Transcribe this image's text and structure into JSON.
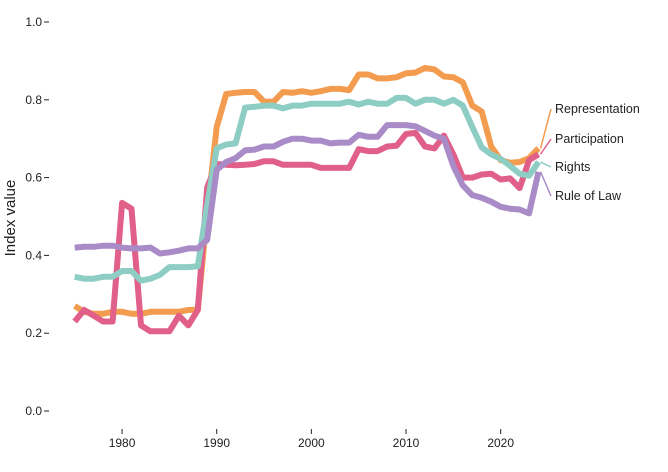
{
  "chart_data": {
    "type": "line",
    "title": "",
    "xlabel": "",
    "ylabel": "Index value",
    "xlim": [
      1974.5,
      2025
    ],
    "ylim": [
      0,
      1
    ],
    "x_ticks": [
      1980,
      1990,
      2000,
      2010,
      2020
    ],
    "y_ticks": [
      0.0,
      0.2,
      0.4,
      0.6,
      0.8,
      1.0
    ],
    "grid": false,
    "legend": "direct labels at line ends (right)",
    "years": [
      1975,
      1976,
      1977,
      1978,
      1979,
      1980,
      1981,
      1982,
      1983,
      1984,
      1985,
      1986,
      1987,
      1988,
      1989,
      1990,
      1991,
      1992,
      1993,
      1994,
      1995,
      1996,
      1997,
      1998,
      1999,
      2000,
      2001,
      2002,
      2003,
      2004,
      2005,
      2006,
      2007,
      2008,
      2009,
      2010,
      2011,
      2012,
      2013,
      2014,
      2015,
      2016,
      2017,
      2018,
      2019,
      2020,
      2021,
      2022,
      2023,
      2024
    ],
    "series": [
      {
        "name": "Representation",
        "color": "#f39c4f",
        "values": [
          0.27,
          0.255,
          0.25,
          0.25,
          0.255,
          0.255,
          0.25,
          0.25,
          0.255,
          0.255,
          0.255,
          0.255,
          0.26,
          0.26,
          0.51,
          0.73,
          0.815,
          0.818,
          0.82,
          0.82,
          0.795,
          0.795,
          0.82,
          0.818,
          0.822,
          0.818,
          0.822,
          0.828,
          0.828,
          0.825,
          0.865,
          0.865,
          0.855,
          0.855,
          0.858,
          0.868,
          0.87,
          0.882,
          0.878,
          0.86,
          0.858,
          0.845,
          0.785,
          0.77,
          0.68,
          0.645,
          0.638,
          0.64,
          0.65,
          0.675
        ]
      },
      {
        "name": "Participation",
        "color": "#e0608a",
        "values": [
          0.23,
          0.26,
          0.245,
          0.23,
          0.23,
          0.535,
          0.52,
          0.22,
          0.205,
          0.205,
          0.205,
          0.245,
          0.22,
          0.26,
          0.575,
          0.635,
          0.633,
          0.632,
          0.633,
          0.635,
          0.642,
          0.642,
          0.633,
          0.633,
          0.633,
          0.633,
          0.625,
          0.625,
          0.625,
          0.625,
          0.673,
          0.668,
          0.668,
          0.68,
          0.682,
          0.712,
          0.715,
          0.68,
          0.675,
          0.708,
          0.66,
          0.6,
          0.6,
          0.608,
          0.61,
          0.595,
          0.598,
          0.573,
          0.645,
          0.66
        ]
      },
      {
        "name": "Rights",
        "color": "#8ecdc4",
        "values": [
          0.345,
          0.34,
          0.34,
          0.345,
          0.345,
          0.36,
          0.36,
          0.335,
          0.34,
          0.35,
          0.37,
          0.37,
          0.37,
          0.372,
          0.53,
          0.675,
          0.685,
          0.688,
          0.78,
          0.782,
          0.785,
          0.785,
          0.778,
          0.785,
          0.785,
          0.79,
          0.79,
          0.79,
          0.79,
          0.795,
          0.788,
          0.795,
          0.79,
          0.79,
          0.805,
          0.805,
          0.79,
          0.8,
          0.8,
          0.79,
          0.8,
          0.785,
          0.73,
          0.678,
          0.66,
          0.648,
          0.63,
          0.61,
          0.605,
          0.64
        ]
      },
      {
        "name": "Rule of Law",
        "color": "#a98bc7",
        "values": [
          0.42,
          0.422,
          0.422,
          0.425,
          0.425,
          0.42,
          0.418,
          0.418,
          0.42,
          0.405,
          0.408,
          0.412,
          0.418,
          0.418,
          0.44,
          0.62,
          0.64,
          0.65,
          0.67,
          0.672,
          0.68,
          0.68,
          0.692,
          0.7,
          0.7,
          0.695,
          0.695,
          0.688,
          0.69,
          0.69,
          0.71,
          0.705,
          0.705,
          0.735,
          0.735,
          0.735,
          0.732,
          0.72,
          0.708,
          0.7,
          0.63,
          0.58,
          0.555,
          0.548,
          0.538,
          0.525,
          0.52,
          0.518,
          0.508,
          0.615
        ]
      }
    ]
  }
}
